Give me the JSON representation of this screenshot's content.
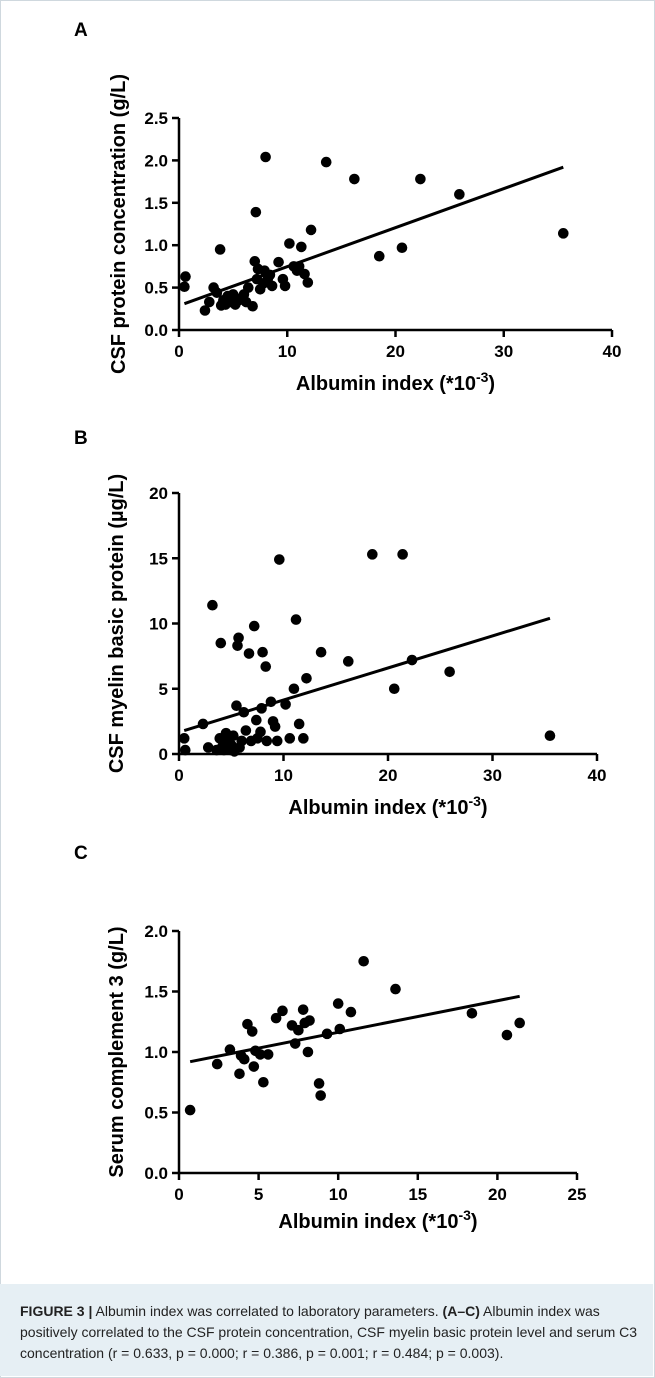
{
  "chart_data": [
    {
      "type": "scatter",
      "panel_label": "A",
      "xlabel": "Albumin index (*10",
      "xlabel_sup": "-3",
      "xlabel_end": ")",
      "ylabel": "CSF protein concentration (g/L)",
      "xlim": [
        0,
        40
      ],
      "ylim": [
        0.0,
        2.5
      ],
      "x_ticks": [
        "0",
        "10",
        "20",
        "30",
        "40"
      ],
      "y_ticks": [
        "0.0",
        "0.5",
        "1.0",
        "1.5",
        "2.0",
        "2.5"
      ],
      "grid": false,
      "regression_line": {
        "x": [
          0.5,
          35.5
        ],
        "y": [
          0.31,
          1.92
        ]
      },
      "points": [
        [
          0.5,
          0.51
        ],
        [
          0.6,
          0.63
        ],
        [
          2.4,
          0.23
        ],
        [
          2.8,
          0.33
        ],
        [
          3.2,
          0.5
        ],
        [
          3.5,
          0.44
        ],
        [
          3.8,
          0.95
        ],
        [
          3.9,
          0.29
        ],
        [
          4.1,
          0.35
        ],
        [
          4.3,
          0.3
        ],
        [
          4.5,
          0.4
        ],
        [
          4.8,
          0.33
        ],
        [
          5.0,
          0.42
        ],
        [
          5.2,
          0.3
        ],
        [
          5.5,
          0.35
        ],
        [
          5.8,
          0.38
        ],
        [
          6.0,
          0.42
        ],
        [
          6.2,
          0.33
        ],
        [
          6.4,
          0.5
        ],
        [
          6.8,
          0.28
        ],
        [
          7.0,
          0.81
        ],
        [
          7.1,
          1.39
        ],
        [
          7.2,
          0.6
        ],
        [
          7.3,
          0.72
        ],
        [
          7.5,
          0.48
        ],
        [
          7.8,
          0.55
        ],
        [
          7.9,
          0.7
        ],
        [
          8.0,
          2.04
        ],
        [
          8.2,
          0.6
        ],
        [
          8.4,
          0.65
        ],
        [
          8.6,
          0.52
        ],
        [
          9.2,
          0.8
        ],
        [
          9.6,
          0.6
        ],
        [
          9.8,
          0.52
        ],
        [
          10.2,
          1.02
        ],
        [
          10.6,
          0.75
        ],
        [
          10.9,
          0.7
        ],
        [
          11.1,
          0.75
        ],
        [
          11.3,
          0.98
        ],
        [
          11.6,
          0.66
        ],
        [
          11.9,
          0.56
        ],
        [
          12.2,
          1.18
        ],
        [
          13.6,
          1.98
        ],
        [
          16.2,
          1.78
        ],
        [
          18.5,
          0.87
        ],
        [
          20.6,
          0.97
        ],
        [
          22.3,
          1.78
        ],
        [
          25.9,
          1.6
        ],
        [
          35.5,
          1.14
        ]
      ]
    },
    {
      "type": "scatter",
      "panel_label": "B",
      "xlabel": "Albumin index (*10",
      "xlabel_sup": "-3",
      "xlabel_end": ")",
      "ylabel": "CSF myelin basic protein (µg/L)",
      "xlim": [
        0,
        40
      ],
      "ylim": [
        0,
        20
      ],
      "x_ticks": [
        "0",
        "10",
        "20",
        "30",
        "40"
      ],
      "y_ticks": [
        "0",
        "5",
        "10",
        "15",
        "20"
      ],
      "grid": false,
      "regression_line": {
        "x": [
          0.5,
          35.5
        ],
        "y": [
          1.8,
          10.4
        ]
      },
      "points": [
        [
          0.5,
          1.2
        ],
        [
          0.6,
          0.3
        ],
        [
          2.3,
          2.3
        ],
        [
          2.8,
          0.5
        ],
        [
          3.2,
          11.4
        ],
        [
          3.6,
          0.3
        ],
        [
          3.9,
          1.2
        ],
        [
          4.0,
          8.5
        ],
        [
          4.1,
          0.5
        ],
        [
          4.3,
          0.3
        ],
        [
          4.5,
          1.6
        ],
        [
          4.6,
          0.8
        ],
        [
          4.8,
          1.0
        ],
        [
          5.0,
          0.3
        ],
        [
          5.0,
          0.7
        ],
        [
          5.2,
          1.4
        ],
        [
          5.3,
          0.2
        ],
        [
          5.5,
          3.7
        ],
        [
          5.6,
          8.3
        ],
        [
          5.7,
          8.9
        ],
        [
          5.8,
          0.5
        ],
        [
          6.0,
          1.0
        ],
        [
          6.2,
          3.2
        ],
        [
          6.4,
          1.8
        ],
        [
          6.7,
          7.7
        ],
        [
          6.9,
          1.0
        ],
        [
          7.2,
          9.8
        ],
        [
          7.4,
          2.6
        ],
        [
          7.5,
          1.2
        ],
        [
          7.8,
          1.7
        ],
        [
          7.9,
          3.5
        ],
        [
          8.0,
          7.8
        ],
        [
          8.3,
          6.7
        ],
        [
          8.4,
          1.0
        ],
        [
          8.8,
          4.0
        ],
        [
          9.0,
          2.5
        ],
        [
          9.2,
          2.1
        ],
        [
          9.4,
          1.0
        ],
        [
          9.6,
          14.9
        ],
        [
          10.2,
          3.8
        ],
        [
          10.6,
          1.2
        ],
        [
          11.0,
          5.0
        ],
        [
          11.2,
          10.3
        ],
        [
          11.5,
          2.3
        ],
        [
          11.9,
          1.2
        ],
        [
          12.2,
          5.8
        ],
        [
          13.6,
          7.8
        ],
        [
          16.2,
          7.1
        ],
        [
          18.5,
          15.3
        ],
        [
          20.6,
          5.0
        ],
        [
          21.4,
          15.3
        ],
        [
          22.3,
          7.2
        ],
        [
          25.9,
          6.3
        ],
        [
          35.5,
          1.4
        ]
      ]
    },
    {
      "type": "scatter",
      "panel_label": "C",
      "xlabel": "Albumin index (*10",
      "xlabel_sup": "-3",
      "xlabel_end": ")",
      "ylabel": "Serum complement 3 (g/L)",
      "xlim": [
        0,
        25
      ],
      "ylim": [
        0.0,
        2.0
      ],
      "x_ticks": [
        "0",
        "5",
        "10",
        "15",
        "20",
        "25"
      ],
      "y_ticks": [
        "0.0",
        "0.5",
        "1.0",
        "1.5",
        "2.0"
      ],
      "grid": false,
      "regression_line": {
        "x": [
          0.7,
          21.4
        ],
        "y": [
          0.92,
          1.46
        ]
      },
      "points": [
        [
          0.7,
          0.52
        ],
        [
          2.4,
          0.9
        ],
        [
          3.2,
          1.02
        ],
        [
          3.8,
          0.82
        ],
        [
          3.9,
          0.97
        ],
        [
          4.1,
          0.94
        ],
        [
          4.3,
          1.23
        ],
        [
          4.6,
          1.17
        ],
        [
          4.7,
          0.88
        ],
        [
          4.8,
          1.01
        ],
        [
          5.1,
          0.98
        ],
        [
          5.3,
          0.75
        ],
        [
          5.6,
          0.98
        ],
        [
          6.1,
          1.28
        ],
        [
          6.5,
          1.34
        ],
        [
          7.1,
          1.22
        ],
        [
          7.3,
          1.07
        ],
        [
          7.5,
          1.18
        ],
        [
          7.8,
          1.35
        ],
        [
          7.9,
          1.24
        ],
        [
          8.1,
          1.0
        ],
        [
          8.2,
          1.26
        ],
        [
          8.8,
          0.74
        ],
        [
          8.9,
          0.64
        ],
        [
          9.3,
          1.15
        ],
        [
          10.0,
          1.4
        ],
        [
          10.1,
          1.19
        ],
        [
          10.8,
          1.33
        ],
        [
          11.6,
          1.75
        ],
        [
          13.6,
          1.52
        ],
        [
          18.4,
          1.32
        ],
        [
          20.6,
          1.14
        ],
        [
          21.4,
          1.24
        ]
      ]
    }
  ],
  "caption": {
    "label": "FIGURE 3 |",
    "text1": " Albumin index was correlated to laboratory parameters. ",
    "bold_range": "(A–C)",
    "text2": " Albumin index was positively correlated to the CSF protein concentration, CSF myelin basic protein level and serum C3 concentration (",
    "stats": "r = 0.633, p = 0.000; r = 0.386, p = 0.001; r = 0.484; p = 0.003",
    "text3": ")."
  }
}
